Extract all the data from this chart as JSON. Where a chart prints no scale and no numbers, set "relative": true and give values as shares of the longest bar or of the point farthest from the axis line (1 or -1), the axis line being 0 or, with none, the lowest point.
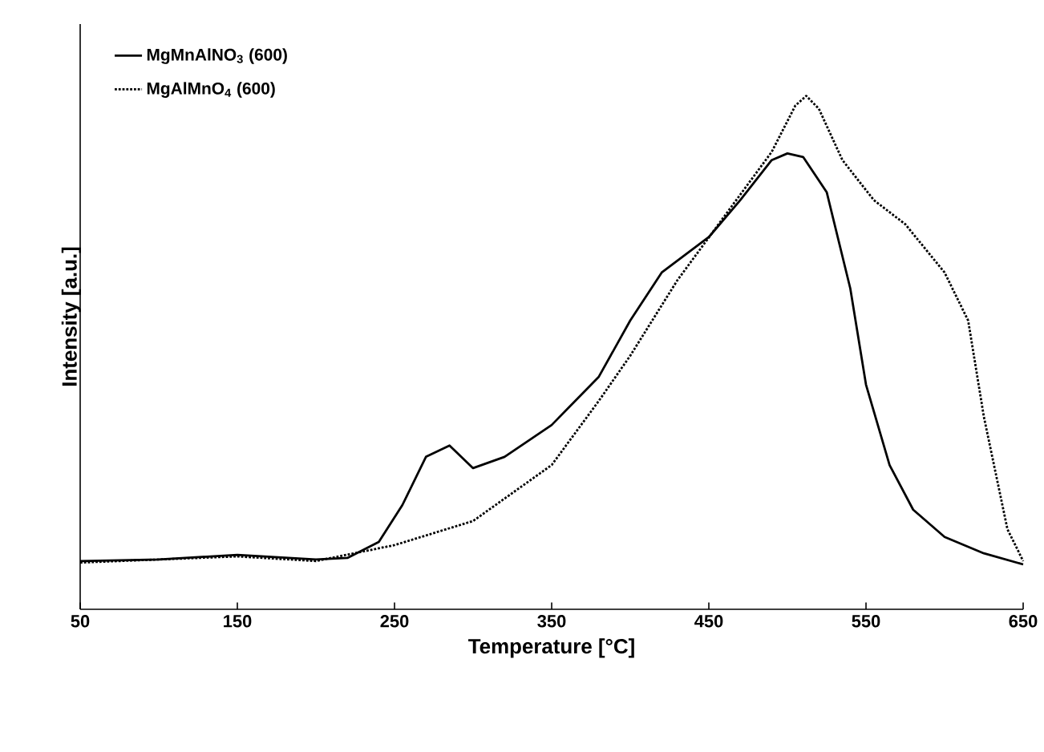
{
  "chart_data": {
    "type": "line",
    "xlabel": "Temperature [°C]",
    "ylabel": "Intensity [a.u.]",
    "relative": true,
    "xlim": [
      50,
      650
    ],
    "xticks": [
      50,
      150,
      250,
      350,
      450,
      550,
      650
    ],
    "tick_labels": "x",
    "legend": "top left",
    "grid": false,
    "marker": "none",
    "series": [
      {
        "name": "MgMnAlNO$_{3}$ (600)",
        "color": "#000000",
        "line_style": "solid",
        "x": [
          50,
          100,
          150,
          200,
          220,
          240,
          255,
          270,
          285,
          300,
          320,
          350,
          380,
          400,
          420,
          450,
          470,
          490,
          500,
          510,
          525,
          540,
          550,
          565,
          580,
          600,
          625,
          650
        ],
        "values": [
          0.094,
          0.097,
          0.106,
          0.097,
          0.1,
          0.131,
          0.203,
          0.297,
          0.319,
          0.275,
          0.297,
          0.359,
          0.453,
          0.5625,
          0.656,
          0.725,
          0.797,
          0.875,
          0.888,
          0.881,
          0.8125,
          0.625,
          0.4375,
          0.281,
          0.194,
          0.141,
          0.109,
          0.0875
        ]
      },
      {
        "name": "MgAlMnO$_{4}$ (600)",
        "color": "#000000",
        "line_style": "dotted",
        "x": [
          50,
          150,
          200,
          250,
          300,
          350,
          380,
          400,
          430,
          460,
          490,
          505,
          512,
          520,
          535,
          555,
          575,
          600,
          615,
          625,
          640,
          650
        ],
        "values": [
          0.091,
          0.103,
          0.094,
          0.125,
          0.172,
          0.281,
          0.406,
          0.494,
          0.641,
          0.766,
          0.891,
          0.981,
          1.0,
          0.975,
          0.875,
          0.797,
          0.75,
          0.656,
          0.5625,
          0.375,
          0.156,
          0.094
        ]
      }
    ]
  }
}
